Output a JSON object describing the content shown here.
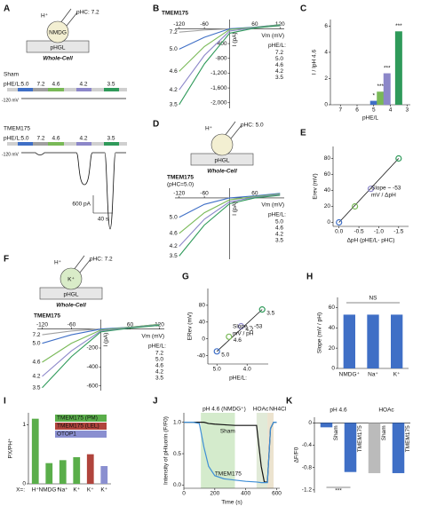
{
  "panels": {
    "A": {
      "label": "A",
      "ion": "H⁺",
      "cation": "NMDG",
      "ph_c": "pHC: 7.2",
      "config": "Whole-Cell",
      "organelle": "pHGL",
      "traces": [
        {
          "name": "Sham",
          "ph_label": "pHE/L:",
          "hold": "-120 mV"
        },
        {
          "name": "TMEM175",
          "ph_label": "pHE/L:",
          "hold": "-120 mV"
        }
      ],
      "steps": [
        "5.0",
        "7.2",
        "4.6",
        "4.2",
        "3.5"
      ],
      "step_colors": [
        "#3f6fc6",
        "#a0a0a0",
        "#79b957",
        "#8c87c9",
        "#2f9a5a"
      ],
      "scale_y": "600 pA",
      "scale_x": "40 s"
    },
    "B": {
      "label": "B",
      "title": "TMEM175",
      "xlabel": "Vm (mV)",
      "ylabel": "I (pA)",
      "legend_title": "pHE/L:",
      "xlim": [
        -130,
        130
      ],
      "ylim": [
        -2150,
        250
      ],
      "xticks": [
        -120,
        -60,
        60,
        120
      ],
      "yticks": [
        -400,
        -800,
        {
          "value": -1200,
          "label": "-1,200"
        },
        {
          "value": -1600,
          "label": "-1,600"
        },
        {
          "value": -2000,
          "label": "-2,000"
        }
      ],
      "x": [
        -120,
        -60,
        0,
        60,
        120
      ],
      "series": [
        {
          "name": "7.2",
          "color": "#a0a0a0",
          "values": [
            -90,
            -35,
            0,
            30,
            80
          ]
        },
        {
          "name": "5.0",
          "color": "#3f6fc6",
          "values": [
            -550,
            -230,
            0,
            45,
            110
          ]
        },
        {
          "name": "4.6",
          "color": "#79b957",
          "values": [
            -1150,
            -480,
            -20,
            40,
            110
          ]
        },
        {
          "name": "4.2",
          "color": "#8c87c9",
          "values": [
            -1650,
            -720,
            -60,
            30,
            100
          ]
        },
        {
          "name": "3.5",
          "color": "#2f9a5a",
          "values": [
            -2050,
            -950,
            -120,
            20,
            90
          ]
        }
      ]
    },
    "C": {
      "label": "C",
      "ylabel": "I / IpH 4.6",
      "xlabel": "pHE/L",
      "xlim": [
        7.6,
        2.8
      ],
      "ylim": [
        0,
        6.5
      ],
      "xticks": [
        7,
        6,
        5,
        4,
        3
      ],
      "yticks": [
        0,
        2,
        4,
        6
      ],
      "x": [
        7.2,
        5.0,
        4.6,
        4.2,
        3.5
      ],
      "values": [
        0.05,
        0.3,
        1,
        2.4,
        5.6
      ],
      "colors": [
        "#a0a0a0",
        "#3f6fc6",
        "#79b957",
        "#8c87c9",
        "#2f9a5a"
      ],
      "significance": [
        "*",
        "***",
        "***",
        "***"
      ]
    },
    "D": {
      "label": "D",
      "ion": "H⁺",
      "ph_c": "pHC: 5.0",
      "config": "Whole-Cell",
      "organelle": "pHGL",
      "title": "TMEM175",
      "subtitle": "(pHC=5.0)",
      "xlabel": "Vm (mV)",
      "ylabel": "I (pA)",
      "legend_title": "pHE/L:",
      "xlim": [
        -130,
        130
      ],
      "ylim": [
        -950,
        150
      ],
      "xticks": [
        -120,
        -60,
        60
      ],
      "x": [
        -120,
        -60,
        0,
        60,
        120
      ],
      "series": [
        {
          "name": "5.0",
          "color": "#3f6fc6",
          "values": [
            -300,
            -100,
            0,
            30,
            70
          ]
        },
        {
          "name": "4.6",
          "color": "#79b957",
          "values": [
            -550,
            -230,
            -30,
            20,
            60
          ]
        },
        {
          "name": "4.2",
          "color": "#8c87c9",
          "values": [
            -750,
            -330,
            -60,
            10,
            50
          ]
        },
        {
          "name": "3.5",
          "color": "#2f9a5a",
          "values": [
            -900,
            -420,
            -90,
            0,
            40
          ]
        }
      ]
    },
    "E": {
      "label": "E",
      "ylabel": "Erev (mV)",
      "xlabel": "ΔpH (pHE/L- pHC)",
      "xlim": [
        0.15,
        -1.75
      ],
      "ylim": [
        -5,
        95
      ],
      "xticks": [
        {
          "value": 0,
          "label": "0.0"
        },
        {
          "value": -0.5,
          "label": "-0.5"
        },
        {
          "value": -1,
          "label": "-1.0"
        },
        {
          "value": -1.5,
          "label": "-1.5"
        }
      ],
      "yticks": [
        0,
        20,
        40,
        60,
        80
      ],
      "x": [
        0,
        -0.4,
        -0.8,
        -1.5
      ],
      "values": [
        0,
        20,
        42,
        80
      ],
      "colors": [
        "#3f6fc6",
        "#79b957",
        "#8c87c9",
        "#2f9a5a"
      ],
      "annotation": [
        "Slope ~ -53",
        "mV / ΔpH"
      ]
    },
    "F": {
      "label": "F",
      "ion": "H⁺",
      "cation": "K⁺",
      "ph_c": "pHC: 7.2",
      "config": "Whole-Cell",
      "organelle": "pHGL",
      "title": "TMEM175",
      "xlabel": "Vm (mV)",
      "ylabel": "I (pA)",
      "legend_title": "pHE/L:",
      "xlim": [
        -130,
        130
      ],
      "ylim": [
        -650,
        100
      ],
      "xticks": [
        -120,
        -60,
        60,
        120
      ],
      "yticks": [
        -200,
        -400,
        -600
      ],
      "x": [
        -120,
        -60,
        0,
        60,
        120
      ],
      "series": [
        {
          "name": "7.2",
          "color": "#a0a0a0",
          "values": [
            -60,
            -20,
            0,
            15,
            40
          ]
        },
        {
          "name": "5.0",
          "color": "#3f6fc6",
          "values": [
            -150,
            -60,
            0,
            20,
            50
          ]
        },
        {
          "name": "4.6",
          "color": "#79b957",
          "values": [
            -350,
            -150,
            -10,
            20,
            50
          ]
        },
        {
          "name": "4.2",
          "color": "#8c87c9",
          "values": [
            -500,
            -230,
            -20,
            15,
            45
          ]
        },
        {
          "name": "3.5",
          "color": "#2f9a5a",
          "values": [
            -620,
            -290,
            -30,
            10,
            40
          ]
        }
      ]
    },
    "G": {
      "label": "G",
      "ylabel": "ERev (mV)",
      "xlabel": "pHE/L:",
      "xlim": [
        5.3,
        3.3
      ],
      "ylim": [
        -60,
        120
      ],
      "xticks": [
        {
          "value": 5,
          "label": "5.0"
        },
        {
          "value": 4,
          "label": "4.0"
        }
      ],
      "yticks": [
        -40,
        0,
        40,
        80
      ],
      "x": [
        5.0,
        4.6,
        4.2,
        3.5
      ],
      "values": [
        -30,
        5,
        30,
        70
      ],
      "names": [
        "5.0",
        "4.6",
        "4.2",
        "3.5"
      ],
      "colors": [
        "#3f6fc6",
        "#79b957",
        "#8c87c9",
        "#2f9a5a"
      ],
      "annotation": [
        "Slope ~ -53",
        "mV / pH"
      ]
    },
    "H": {
      "label": "H",
      "ylabel": "Slope (mV / pH)",
      "ylim": [
        0,
        70
      ],
      "yticks": [
        0,
        20,
        40,
        60
      ],
      "categories": [
        "NMDG⁺",
        "Na⁺",
        "K⁺"
      ],
      "values": [
        53,
        53,
        53
      ],
      "color": "#3f6fc6",
      "annotation": "NS"
    },
    "I": {
      "label": "I",
      "ylabel": "PX/PH⁺",
      "xlabel": "X=:",
      "ylim": [
        0,
        1.2
      ],
      "yticks": [
        0,
        1
      ],
      "categories": [
        "H⁺",
        "NMDG⁺",
        "Na⁺",
        "K⁺",
        "K⁺",
        "K⁺"
      ],
      "values": [
        1.1,
        0.35,
        0.4,
        0.45,
        0.5,
        0.3
      ],
      "colors": [
        "#5aae4a",
        "#5aae4a",
        "#5aae4a",
        "#5aae4a",
        "#b0443c",
        "#8a8fd0"
      ],
      "legend": [
        {
          "name": "TMEM175 (PM)",
          "color": "#5aae4a"
        },
        {
          "name": "TMEM175 (LEL)",
          "color": "#b0443c"
        },
        {
          "name": "OTOP1",
          "color": "#8a8fd0"
        }
      ]
    },
    "J": {
      "label": "J",
      "ylabel": "Intensity of pHluorin (F/F0)",
      "xlabel": "Time (s)",
      "xlim": [
        0,
        620
      ],
      "ylim": [
        -0.05,
        1.15
      ],
      "xticks": [
        0,
        200,
        400,
        600
      ],
      "yticks": [
        {
          "value": 0,
          "label": "0.0"
        },
        {
          "value": 0.5,
          "label": "0.5"
        },
        {
          "value": 1,
          "label": "1.0"
        }
      ],
      "bands": [
        {
          "name": "pH 4.6 (NMDG⁺)",
          "range": [
            110,
            330
          ],
          "color": "#d4ebcc"
        },
        {
          "name": "HOAc",
          "range": [
            470,
            540
          ],
          "color": "#e1ead8"
        },
        {
          "name": "NH4Cl",
          "range": [
            540,
            580
          ],
          "color": "#ece3cf"
        }
      ],
      "x": [
        0,
        60,
        100,
        130,
        160,
        200,
        260,
        330,
        400,
        470,
        500,
        520,
        540,
        560,
        580,
        600
      ],
      "series": [
        {
          "name": "Sham",
          "color": "#111111",
          "values": [
            1,
            1,
            1,
            1,
            0.98,
            0.97,
            0.96,
            0.95,
            0.95,
            0.95,
            0.3,
            0.05,
            0.05,
            0.9,
            1,
            1
          ]
        },
        {
          "name": "TMEM175",
          "color": "#3f8fd6",
          "values": [
            1,
            1,
            0.98,
            0.6,
            0.3,
            0.15,
            0.1,
            0.08,
            0.06,
            0.05,
            0.04,
            0.04,
            0.04,
            0.9,
            1,
            1
          ]
        }
      ]
    },
    "K": {
      "label": "K",
      "ylabel": "ΔF/F0",
      "groups": [
        "pH 4.6",
        "HOAc"
      ],
      "ylim": [
        -1.25,
        0.1
      ],
      "yticks": [
        0,
        -0.4,
        -0.8,
        -1.2
      ],
      "categories": [
        "Sham",
        "TMEM175",
        "Sham",
        "TMEM175"
      ],
      "values": [
        -0.08,
        -0.88,
        -0.9,
        -0.9
      ],
      "colors": [
        "#3f6fc6",
        "#3f6fc6",
        "#bbbbbb",
        "#3f6fc6"
      ],
      "annotation": "***"
    }
  }
}
